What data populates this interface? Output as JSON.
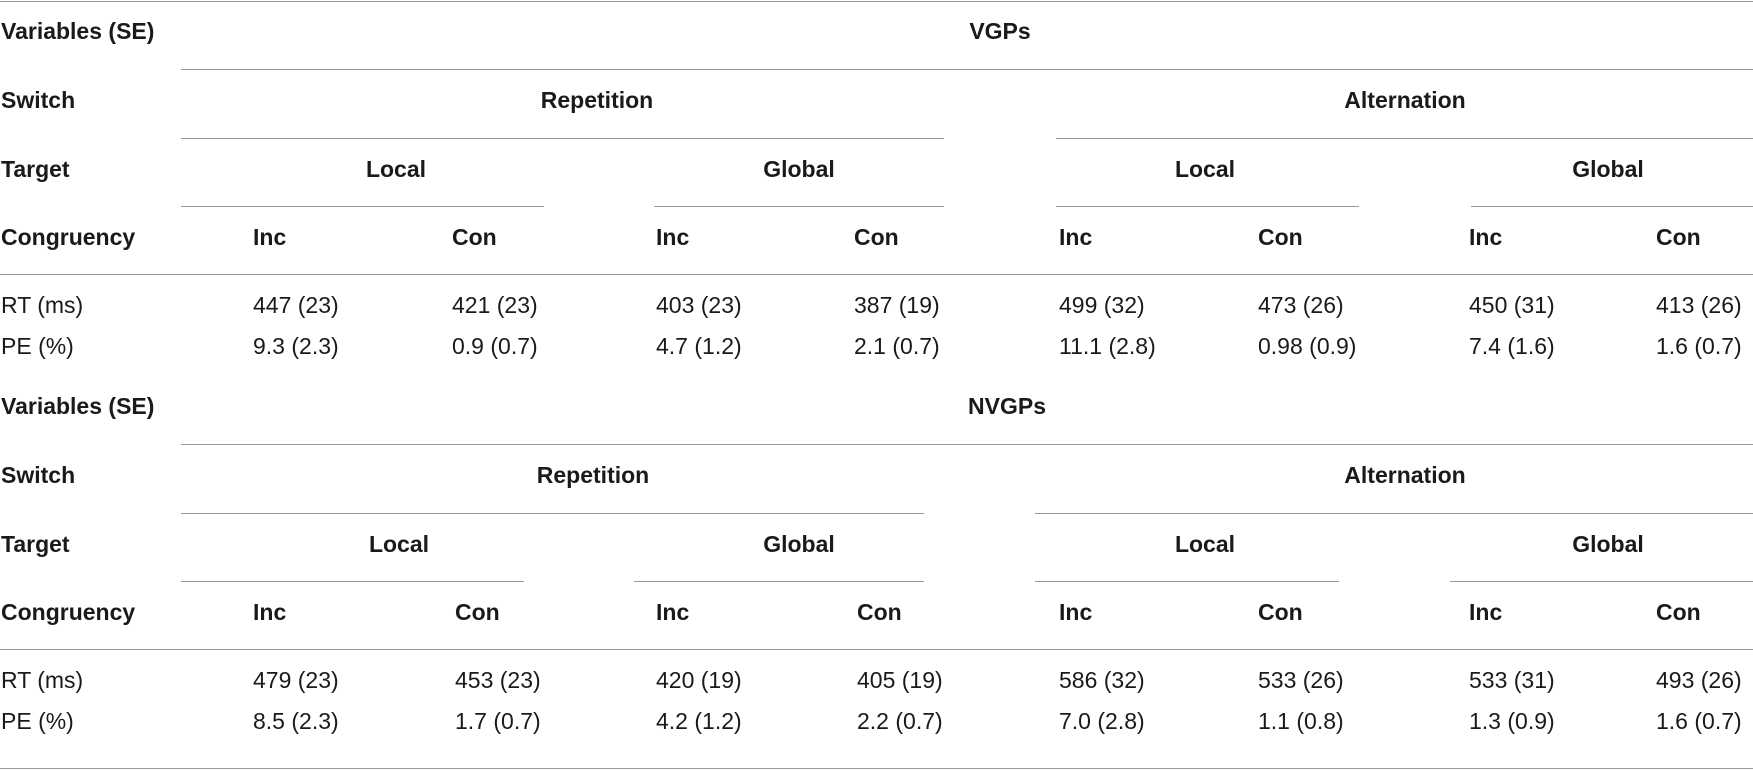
{
  "sections": [
    {
      "label_variables": "Variables (SE)",
      "group_title": "VGPs",
      "label_switch": "Switch",
      "switch_levels": [
        "Repetition",
        "Alternation"
      ],
      "label_target": "Target",
      "target_levels": [
        "Local",
        "Global",
        "Local",
        "Global"
      ],
      "label_congruency": "Congruency",
      "congruency_levels": [
        "Inc",
        "Con",
        "Inc",
        "Con",
        "Inc",
        "Con",
        "Inc",
        "Con"
      ],
      "rows": [
        {
          "label": "RT (ms)",
          "values": [
            "447 (23)",
            "421 (23)",
            "403 (23)",
            "387 (19)",
            "499 (32)",
            "473 (26)",
            "450 (31)",
            "413 (26)"
          ]
        },
        {
          "label": "PE (%)",
          "values": [
            "9.3 (2.3)",
            "0.9 (0.7)",
            "4.7 (1.2)",
            "2.1 (0.7)",
            "11.1 (2.8)",
            "0.98 (0.9)",
            "7.4 (1.6)",
            "1.6 (0.7)"
          ]
        }
      ]
    },
    {
      "label_variables": "Variables (SE)",
      "group_title": "NVGPs",
      "label_switch": "Switch",
      "switch_levels": [
        "Repetition",
        "Alternation"
      ],
      "label_target": "Target",
      "target_levels": [
        "Local",
        "Global",
        "Local",
        "Global"
      ],
      "label_congruency": "Congruency",
      "congruency_levels": [
        "Inc",
        "Con",
        "Inc",
        "Con",
        "Inc",
        "Con",
        "Inc",
        "Con"
      ],
      "rows": [
        {
          "label": "RT (ms)",
          "values": [
            "479 (23)",
            "453 (23)",
            "420 (19)",
            "405 (19)",
            "586 (32)",
            "533 (26)",
            "533 (31)",
            "493 (26)"
          ]
        },
        {
          "label": "PE (%)",
          "values": [
            "8.5 (2.3)",
            "1.7 (0.7)",
            "4.2 (1.2)",
            "2.2 (0.7)",
            "7.0 (2.8)",
            "1.1 (0.8)",
            "1.3 (0.9)",
            "1.6 (0.7)"
          ]
        }
      ]
    }
  ]
}
